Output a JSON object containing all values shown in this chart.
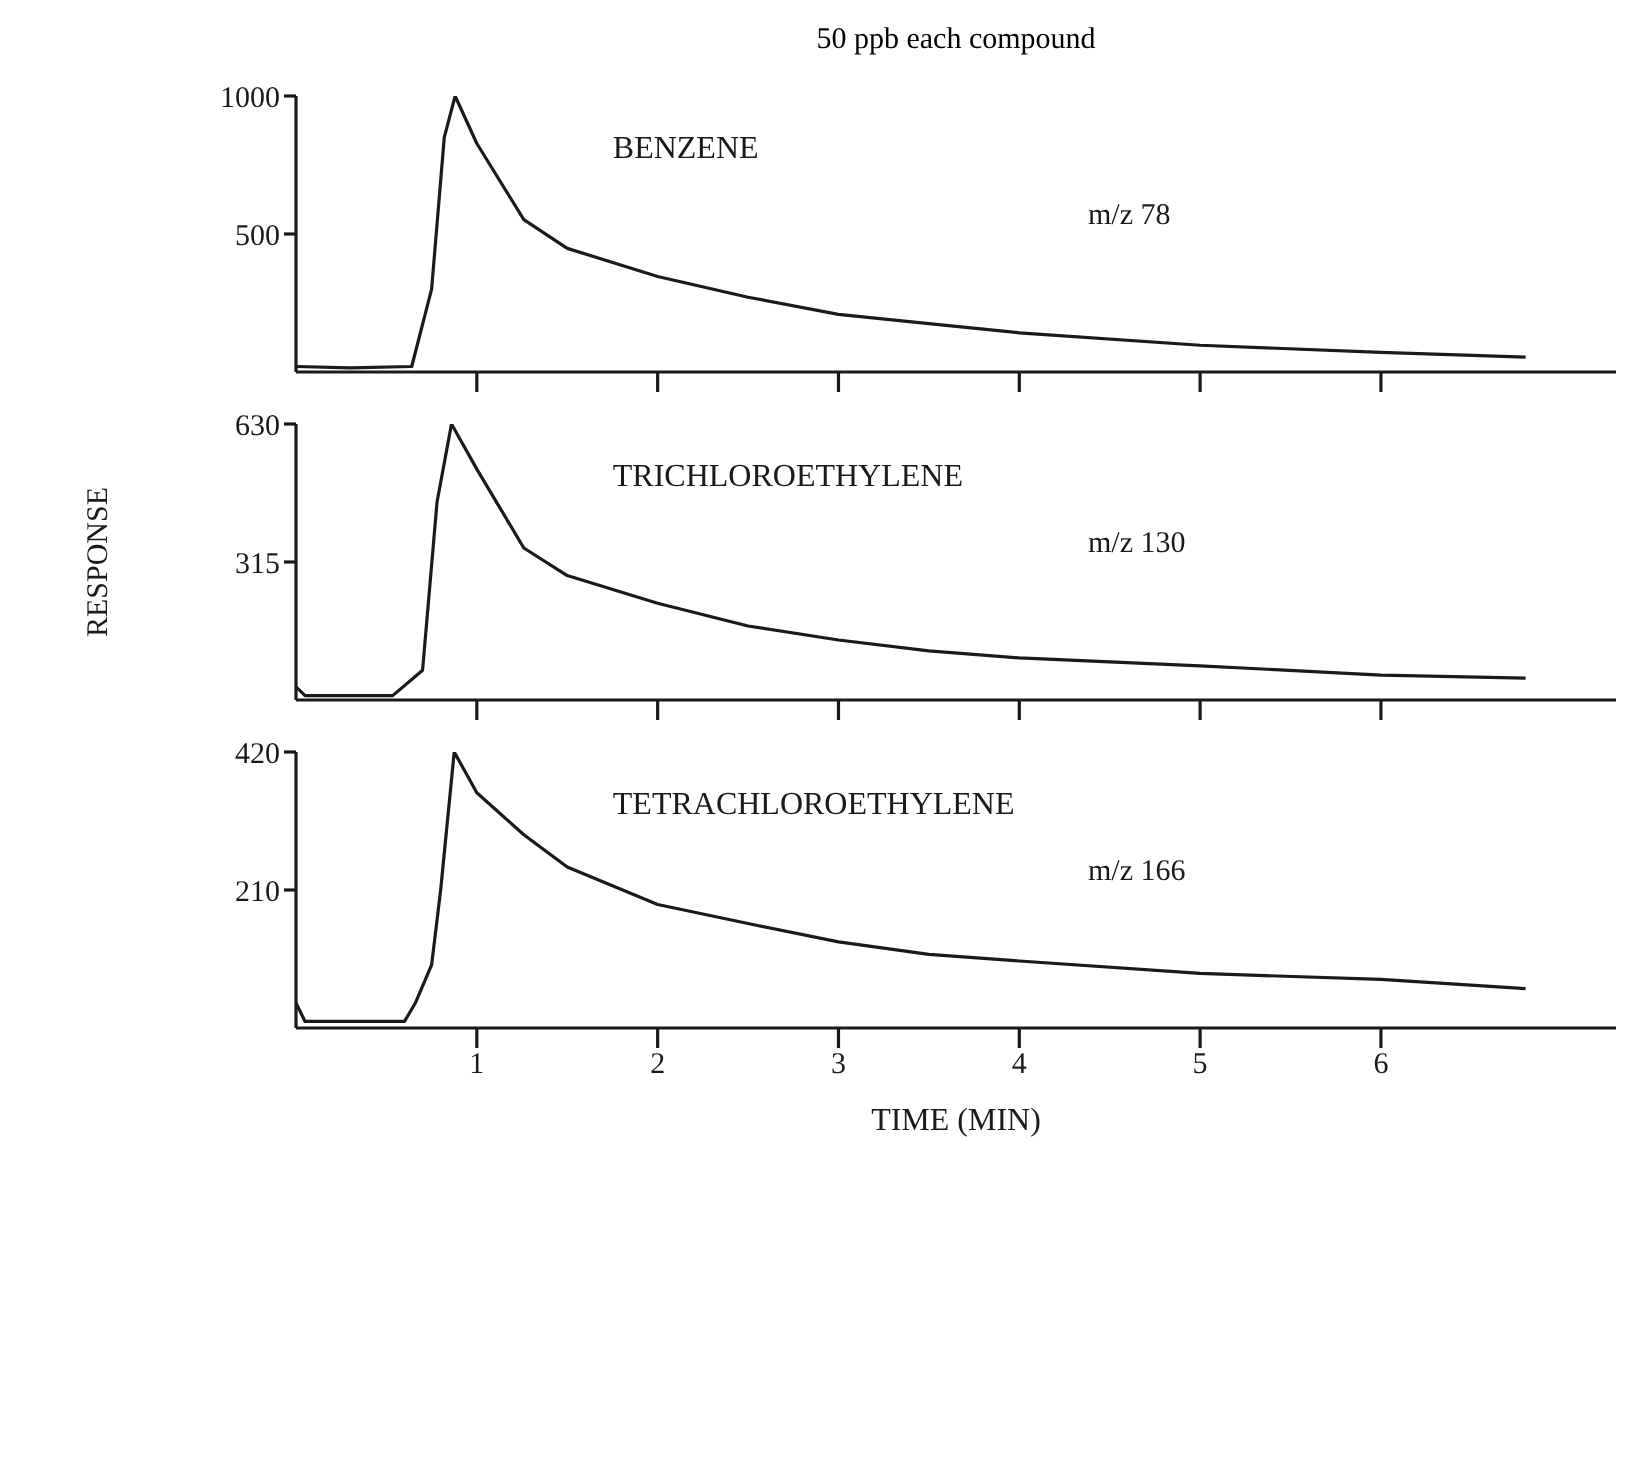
{
  "chart_data": [
    {
      "type": "line",
      "title": "50 ppb each compound",
      "xlim": [
        0,
        7.3
      ],
      "xticks": [
        1,
        2,
        3,
        4,
        5,
        6
      ],
      "ylim": [
        0,
        1000
      ],
      "yticks": [
        500,
        1000
      ],
      "tick_labels": "y",
      "marker": "none",
      "line_style": "solid",
      "annotations": [
        "m/z 78"
      ],
      "series": [
        {
          "name": "BENZENE",
          "color": "#1a1a1a",
          "x": [
            0,
            0.3,
            0.64,
            0.75,
            0.82,
            0.88,
            1.0,
            1.26,
            1.5,
            2,
            2.5,
            3,
            3.5,
            4,
            5,
            6,
            6.8
          ],
          "values": [
            20,
            15,
            20,
            300,
            850,
            1000,
            828,
            552,
            448,
            346,
            271,
            209,
            175,
            142,
            97,
            71,
            54
          ]
        }
      ]
    },
    {
      "type": "line",
      "ylabel": "RESPONSE",
      "xlim": [
        0,
        7.3
      ],
      "xticks": [
        1,
        2,
        3,
        4,
        5,
        6
      ],
      "ylim": [
        0,
        630
      ],
      "yticks": [
        315,
        630
      ],
      "tick_labels": "y",
      "marker": "none",
      "line_style": "solid",
      "annotations": [
        "m/z 130"
      ],
      "series": [
        {
          "name": "TRICHLOROETHYLENE",
          "color": "#1a1a1a",
          "x": [
            0,
            0.05,
            0.3,
            0.535,
            0.7,
            0.78,
            0.86,
            1.0,
            1.26,
            1.5,
            2,
            2.5,
            3,
            3.5,
            4,
            5,
            6,
            6.8
          ],
          "values": [
            30,
            10,
            10,
            10,
            68,
            452,
            630,
            527,
            347,
            284,
            221,
            169,
            137,
            112,
            96,
            78,
            57,
            50
          ]
        }
      ]
    },
    {
      "type": "line",
      "xlabel": "TIME (MIN)",
      "xlim": [
        0,
        7.3
      ],
      "xticks": [
        1,
        2,
        3,
        4,
        5,
        6
      ],
      "ylim": [
        0,
        420
      ],
      "yticks": [
        210,
        420
      ],
      "marker": "none",
      "line_style": "solid",
      "annotations": [
        "m/z 166"
      ],
      "series": [
        {
          "name": "TETRACHLOROETHYLENE",
          "color": "#1a1a1a",
          "x": [
            0,
            0.05,
            0.3,
            0.6,
            0.66,
            0.75,
            0.8,
            0.875,
            1.0,
            1.26,
            1.5,
            2,
            2.5,
            3,
            3.5,
            4,
            5,
            6,
            6.8
          ],
          "values": [
            38,
            10,
            10,
            10,
            38,
            96,
            210,
            420,
            358,
            294,
            245,
            188,
            159,
            131,
            112,
            102,
            83,
            74,
            60
          ]
        }
      ]
    }
  ]
}
